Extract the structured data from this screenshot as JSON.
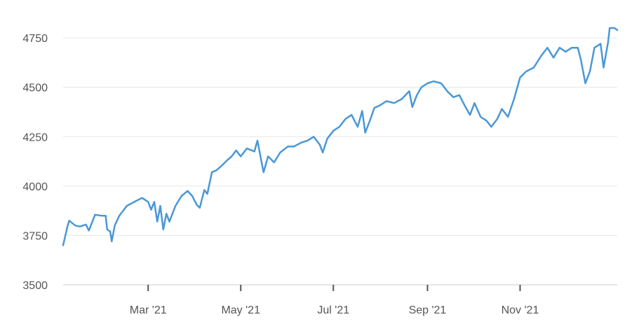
{
  "chart_data": {
    "type": "line",
    "title": "",
    "xlabel": "",
    "ylabel": "",
    "ylim": [
      3500,
      4800
    ],
    "grid": true,
    "line_color": "#4a98d6",
    "x_ticks": [
      {
        "date": "2021-03-01",
        "label": "Mar '21"
      },
      {
        "date": "2021-05-01",
        "label": "May '21"
      },
      {
        "date": "2021-07-01",
        "label": "Jul '21"
      },
      {
        "date": "2021-09-01",
        "label": "Sep '21"
      },
      {
        "date": "2021-11-01",
        "label": "Nov '21"
      }
    ],
    "y_ticks": [
      {
        "value": 3500,
        "label": "3500"
      },
      {
        "value": 3750,
        "label": "3750"
      },
      {
        "value": 4000,
        "label": "4000"
      },
      {
        "value": 4250,
        "label": "4250"
      },
      {
        "value": 4500,
        "label": "4500"
      },
      {
        "value": 4750,
        "label": "4750"
      }
    ],
    "series": [
      {
        "points": [
          [
            "2021-01-04",
            3700
          ],
          [
            "2021-01-07",
            3800
          ],
          [
            "2021-01-08",
            3825
          ],
          [
            "2021-01-12",
            3800
          ],
          [
            "2021-01-15",
            3795
          ],
          [
            "2021-01-19",
            3805
          ],
          [
            "2021-01-21",
            3775
          ],
          [
            "2021-01-25",
            3855
          ],
          [
            "2021-01-29",
            3850
          ],
          [
            "2021-02-01",
            3850
          ],
          [
            "2021-02-02",
            3780
          ],
          [
            "2021-02-04",
            3770
          ],
          [
            "2021-02-05",
            3720
          ],
          [
            "2021-02-07",
            3800
          ],
          [
            "2021-02-10",
            3850
          ],
          [
            "2021-02-15",
            3900
          ],
          [
            "2021-02-20",
            3920
          ],
          [
            "2021-02-25",
            3940
          ],
          [
            "2021-03-01",
            3920
          ],
          [
            "2021-03-03",
            3880
          ],
          [
            "2021-03-05",
            3920
          ],
          [
            "2021-03-07",
            3820
          ],
          [
            "2021-03-09",
            3900
          ],
          [
            "2021-03-11",
            3780
          ],
          [
            "2021-03-13",
            3860
          ],
          [
            "2021-03-15",
            3820
          ],
          [
            "2021-03-19",
            3900
          ],
          [
            "2021-03-23",
            3950
          ],
          [
            "2021-03-27",
            3975
          ],
          [
            "2021-03-30",
            3950
          ],
          [
            "2021-04-02",
            3905
          ],
          [
            "2021-04-04",
            3890
          ],
          [
            "2021-04-07",
            3980
          ],
          [
            "2021-04-09",
            3960
          ],
          [
            "2021-04-12",
            4070
          ],
          [
            "2021-04-15",
            4080
          ],
          [
            "2021-04-18",
            4100
          ],
          [
            "2021-04-22",
            4130
          ],
          [
            "2021-04-25",
            4150
          ],
          [
            "2021-04-28",
            4180
          ],
          [
            "2021-05-01",
            4150
          ],
          [
            "2021-05-05",
            4190
          ],
          [
            "2021-05-10",
            4175
          ],
          [
            "2021-05-12",
            4230
          ],
          [
            "2021-05-16",
            4070
          ],
          [
            "2021-05-19",
            4150
          ],
          [
            "2021-05-23",
            4120
          ],
          [
            "2021-05-27",
            4170
          ],
          [
            "2021-06-01",
            4200
          ],
          [
            "2021-06-05",
            4200
          ],
          [
            "2021-06-10",
            4220
          ],
          [
            "2021-06-14",
            4230
          ],
          [
            "2021-06-18",
            4250
          ],
          [
            "2021-06-22",
            4210
          ],
          [
            "2021-06-24",
            4170
          ],
          [
            "2021-06-27",
            4240
          ],
          [
            "2021-07-01",
            4280
          ],
          [
            "2021-07-05",
            4300
          ],
          [
            "2021-07-09",
            4340
          ],
          [
            "2021-07-13",
            4360
          ],
          [
            "2021-07-17",
            4300
          ],
          [
            "2021-07-20",
            4380
          ],
          [
            "2021-07-22",
            4270
          ],
          [
            "2021-07-25",
            4330
          ],
          [
            "2021-07-28",
            4395
          ],
          [
            "2021-08-01",
            4410
          ],
          [
            "2021-08-05",
            4430
          ],
          [
            "2021-08-10",
            4420
          ],
          [
            "2021-08-15",
            4440
          ],
          [
            "2021-08-20",
            4480
          ],
          [
            "2021-08-22",
            4400
          ],
          [
            "2021-08-25",
            4460
          ],
          [
            "2021-08-28",
            4500
          ],
          [
            "2021-09-01",
            4520
          ],
          [
            "2021-09-05",
            4530
          ],
          [
            "2021-09-10",
            4520
          ],
          [
            "2021-09-14",
            4480
          ],
          [
            "2021-09-18",
            4450
          ],
          [
            "2021-09-22",
            4460
          ],
          [
            "2021-09-26",
            4400
          ],
          [
            "2021-09-29",
            4360
          ],
          [
            "2021-10-02",
            4420
          ],
          [
            "2021-10-06",
            4350
          ],
          [
            "2021-10-10",
            4330
          ],
          [
            "2021-10-13",
            4300
          ],
          [
            "2021-10-17",
            4340
          ],
          [
            "2021-10-20",
            4390
          ],
          [
            "2021-10-24",
            4350
          ],
          [
            "2021-10-28",
            4440
          ],
          [
            "2021-11-01",
            4550
          ],
          [
            "2021-11-05",
            4580
          ],
          [
            "2021-11-10",
            4600
          ],
          [
            "2021-11-15",
            4660
          ],
          [
            "2021-11-19",
            4700
          ],
          [
            "2021-11-23",
            4650
          ],
          [
            "2021-11-27",
            4700
          ],
          [
            "2021-12-01",
            4680
          ],
          [
            "2021-12-05",
            4700
          ],
          [
            "2021-12-09",
            4700
          ],
          [
            "2021-12-11",
            4640
          ],
          [
            "2021-12-14",
            4520
          ],
          [
            "2021-12-17",
            4580
          ],
          [
            "2021-12-20",
            4700
          ],
          [
            "2021-12-24",
            4720
          ],
          [
            "2021-12-26",
            4600
          ],
          [
            "2021-12-29",
            4730
          ],
          [
            "2021-12-30",
            4800
          ],
          [
            "2022-01-02",
            4800
          ],
          [
            "2022-01-04",
            4790
          ]
        ]
      }
    ]
  }
}
